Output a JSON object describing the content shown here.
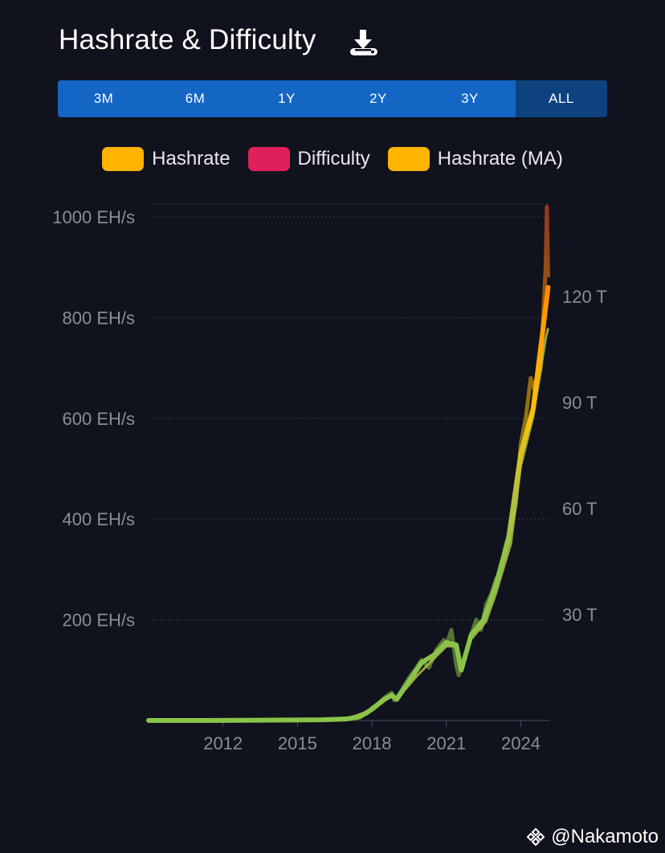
{
  "header": {
    "title": "Hashrate & Difficulty",
    "download_icon": "download-icon"
  },
  "range_selector": {
    "buttons": [
      "3M",
      "6M",
      "1Y",
      "2Y",
      "3Y",
      "ALL"
    ],
    "active": "ALL"
  },
  "legend": [
    {
      "label": "Hashrate",
      "color": "#ffb400"
    },
    {
      "label": "Difficulty",
      "color": "#e0205a"
    },
    {
      "label": "Hashrate (MA)",
      "color": "#ffb400"
    }
  ],
  "watermark": {
    "text": "@Nakamoto",
    "icon": "binance-logo-icon"
  },
  "chart_data": {
    "type": "line",
    "x_ticks": [
      "2012",
      "2015",
      "2018",
      "2021",
      "2024"
    ],
    "x_tick_values": [
      2012,
      2015,
      2018,
      2021,
      2024
    ],
    "xlim": [
      2009.0,
      2025.15
    ],
    "left_axis": {
      "ticks": [
        "200 EH/s",
        "400 EH/s",
        "600 EH/s",
        "800 EH/s",
        "1000 EH/s"
      ],
      "tick_values": [
        200,
        400,
        600,
        800,
        1000
      ],
      "ylim": [
        0,
        1000
      ]
    },
    "right_axis": {
      "ticks": [
        "30 T",
        "60 T",
        "90 T",
        "120 T"
      ],
      "tick_values": [
        30,
        60,
        90,
        120
      ],
      "ylim": [
        0,
        142.5
      ]
    },
    "grid": true,
    "legend_position": "top",
    "series": [
      {
        "name": "Hashrate",
        "axis": "left",
        "x": [
          2009.0,
          2011.0,
          2013.0,
          2015.0,
          2016.0,
          2016.5,
          2017.0,
          2017.5,
          2017.8,
          2018.0,
          2018.3,
          2018.5,
          2018.8,
          2018.9,
          2019.0,
          2019.2,
          2019.5,
          2019.8,
          2020.0,
          2020.3,
          2020.6,
          2020.9,
          2021.0,
          2021.2,
          2021.4,
          2021.5,
          2021.7,
          2022.0,
          2022.2,
          2022.4,
          2022.6,
          2022.8,
          2023.0,
          2023.2,
          2023.4,
          2023.6,
          2023.8,
          2024.0,
          2024.2,
          2024.4,
          2024.6,
          2024.8,
          2025.0,
          2025.05,
          2025.1
        ],
        "y": [
          0,
          0,
          0.5,
          1,
          1.5,
          2,
          4,
          8,
          14,
          25,
          35,
          45,
          55,
          40,
          45,
          60,
          85,
          105,
          120,
          105,
          140,
          160,
          150,
          180,
          110,
          90,
          120,
          170,
          200,
          180,
          230,
          250,
          280,
          300,
          350,
          380,
          430,
          550,
          600,
          680,
          650,
          700,
          900,
          1020,
          880
        ]
      },
      {
        "name": "Difficulty",
        "axis": "right",
        "x": [
          2009.0,
          2015.0,
          2017.0,
          2018.0,
          2018.8,
          2019.0,
          2019.8,
          2020.5,
          2021.0,
          2021.4,
          2021.6,
          2022.0,
          2022.6,
          2023.0,
          2023.6,
          2024.0,
          2024.5,
          2025.0,
          2025.1
        ],
        "y": [
          0,
          0.1,
          0.5,
          3,
          7,
          6,
          12.5,
          17.5,
          21,
          21,
          14,
          23,
          28,
          36,
          50,
          72,
          86,
          108,
          111
        ]
      },
      {
        "name": "Hashrate (MA)",
        "axis": "left",
        "x": [
          2009.0,
          2011.0,
          2013.0,
          2015.0,
          2016.0,
          2017.0,
          2017.5,
          2018.0,
          2018.5,
          2018.8,
          2019.0,
          2019.5,
          2020.0,
          2020.5,
          2021.0,
          2021.4,
          2021.6,
          2022.0,
          2022.5,
          2023.0,
          2023.5,
          2024.0,
          2024.5,
          2025.0,
          2025.1
        ],
        "y": [
          0,
          0,
          0.5,
          1,
          1.5,
          3,
          7,
          22,
          42,
          50,
          42,
          78,
          115,
          130,
          155,
          150,
          100,
          170,
          200,
          270,
          360,
          530,
          620,
          820,
          860
        ]
      }
    ]
  },
  "navigator": {
    "handle_icons": [
      "left-handle-icon",
      "right-handle-icon"
    ]
  }
}
